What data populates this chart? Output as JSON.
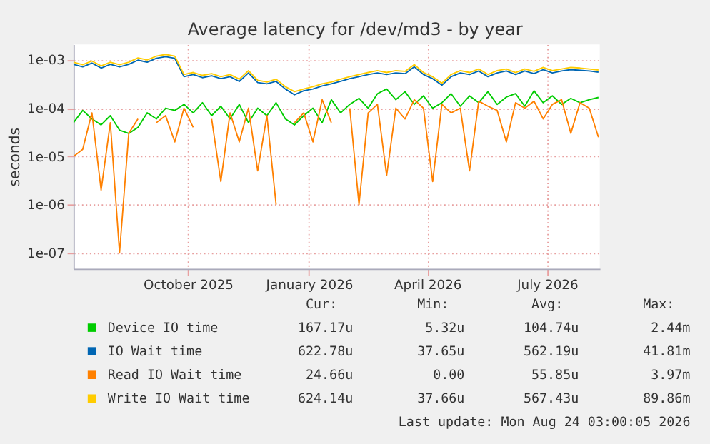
{
  "chart_data": {
    "type": "line",
    "title": "Average latency for /dev/md3 - by year",
    "ylabel": "seconds",
    "log": true,
    "grid": true,
    "legend": "bottom",
    "marker": "none",
    "line_style": "solid",
    "x": [
      "2025-07-20",
      "2025-07-27",
      "2025-08-03",
      "2025-08-10",
      "2025-08-17",
      "2025-08-24",
      "2025-08-31",
      "2025-09-07",
      "2025-09-14",
      "2025-09-21",
      "2025-09-28",
      "2025-10-05",
      "2025-10-12",
      "2025-10-19",
      "2025-10-26",
      "2025-11-02",
      "2025-11-09",
      "2025-11-16",
      "2025-11-23",
      "2025-11-30",
      "2025-12-07",
      "2025-12-14",
      "2025-12-21",
      "2025-12-28",
      "2026-01-04",
      "2026-01-11",
      "2026-01-18",
      "2026-01-25",
      "2026-02-01",
      "2026-02-08",
      "2026-02-15",
      "2026-02-22",
      "2026-03-01",
      "2026-03-08",
      "2026-03-15",
      "2026-03-22",
      "2026-03-29",
      "2026-04-05",
      "2026-04-12",
      "2026-04-19",
      "2026-04-26",
      "2026-05-03",
      "2026-05-10",
      "2026-05-17",
      "2026-05-24",
      "2026-05-31",
      "2026-06-07",
      "2026-06-14",
      "2026-06-21",
      "2026-06-28",
      "2026-07-05",
      "2026-07-12",
      "2026-07-19",
      "2026-07-26",
      "2026-08-02",
      "2026-08-09",
      "2026-08-16",
      "2026-08-23"
    ],
    "xlim": [
      "2025-07-20",
      "2026-08-24"
    ],
    "xticks": [
      {
        "value": "2025-10-15",
        "label": "October 2025"
      },
      {
        "value": "2026-01-15",
        "label": "January 2026"
      },
      {
        "value": "2026-04-15",
        "label": "April 2026"
      },
      {
        "value": "2026-07-15",
        "label": "July 2026"
      }
    ],
    "ylim": [
      4.7e-08,
      0.0021
    ],
    "yticks": [
      {
        "value": 1e-07,
        "label": "1e-07"
      },
      {
        "value": 1e-06,
        "label": "1e-06"
      },
      {
        "value": 1e-05,
        "label": "1e-05"
      },
      {
        "value": 0.0001,
        "label": "1e-04"
      },
      {
        "value": 0.001,
        "label": "1e-03"
      }
    ],
    "series": [
      {
        "name": "Device IO time",
        "color": "#00cc00",
        "values": [
          5e-05,
          9e-05,
          6e-05,
          4.5e-05,
          7e-05,
          3.5e-05,
          3e-05,
          4e-05,
          8e-05,
          6e-05,
          0.0001,
          9e-05,
          0.00012,
          8e-05,
          0.00013,
          7e-05,
          0.00011,
          6e-05,
          0.00012,
          5e-05,
          0.0001,
          7e-05,
          0.00013,
          6e-05,
          4.5e-05,
          7e-05,
          0.0001,
          5e-05,
          0.00015,
          8e-05,
          0.00012,
          0.00016,
          0.0001,
          0.0002,
          0.00025,
          0.00015,
          0.00022,
          0.00012,
          0.00018,
          0.0001,
          0.00013,
          0.0002,
          0.00011,
          0.00018,
          0.00013,
          0.00022,
          0.00012,
          0.00017,
          0.0002,
          0.00011,
          0.00023,
          0.00013,
          0.00018,
          0.00012,
          0.00016,
          0.00013,
          0.00015,
          0.000167
        ]
      },
      {
        "name": "IO Wait time",
        "color": "#0066b3",
        "values": [
          0.00081,
          0.00072,
          0.00086,
          0.00068,
          0.00081,
          0.00072,
          0.00081,
          0.00099,
          0.0009,
          0.00108,
          0.00117,
          0.00108,
          0.00045,
          0.0005,
          0.00043,
          0.00047,
          0.00041,
          0.00045,
          0.00036,
          0.00054,
          0.00034,
          0.00032,
          0.00036,
          0.00025,
          0.00019,
          0.00023,
          0.00025,
          0.00029,
          0.00032,
          0.00036,
          0.00041,
          0.00045,
          0.0005,
          0.00054,
          0.0005,
          0.00054,
          0.00052,
          0.00072,
          0.0005,
          0.00041,
          0.0003,
          0.00045,
          0.00054,
          0.0005,
          0.00059,
          0.00045,
          0.00054,
          0.00059,
          0.0005,
          0.00059,
          0.00052,
          0.00063,
          0.00054,
          0.00059,
          0.00063,
          0.00061,
          0.00059,
          0.00056
        ]
      },
      {
        "name": "Read IO Wait time",
        "color": "#ff8000",
        "values": [
          1e-05,
          1.4e-05,
          8e-05,
          2e-06,
          5e-05,
          1e-07,
          3e-05,
          6e-05,
          null,
          5e-05,
          7e-05,
          2e-05,
          0.0001,
          4e-05,
          null,
          6e-05,
          3e-06,
          8e-05,
          2e-05,
          0.0001,
          5e-06,
          7e-05,
          1e-06,
          null,
          5e-05,
          8e-05,
          2e-05,
          0.00015,
          5e-05,
          null,
          0.0001,
          1e-06,
          8e-05,
          0.00012,
          4e-06,
          0.0001,
          6e-05,
          0.00015,
          0.0001,
          3e-06,
          0.00012,
          8e-05,
          0.0001,
          5e-06,
          0.00014,
          0.00011,
          9e-05,
          2e-05,
          0.00013,
          0.0001,
          0.00014,
          6e-05,
          0.00012,
          0.00015,
          3e-05,
          0.00013,
          0.0001,
          2.5e-05
        ]
      },
      {
        "name": "Write IO Wait time",
        "color": "#ffcc00",
        "values": [
          0.0009,
          0.0008,
          0.00095,
          0.00075,
          0.0009,
          0.0008,
          0.0009,
          0.0011,
          0.001,
          0.0012,
          0.0013,
          0.0012,
          0.0005,
          0.00055,
          0.00048,
          0.00052,
          0.00045,
          0.0005,
          0.0004,
          0.0006,
          0.00038,
          0.00035,
          0.0004,
          0.00028,
          0.00022,
          0.00025,
          0.00028,
          0.00032,
          0.00035,
          0.0004,
          0.00045,
          0.0005,
          0.00055,
          0.0006,
          0.00055,
          0.0006,
          0.00058,
          0.0008,
          0.00055,
          0.00045,
          0.00033,
          0.0005,
          0.0006,
          0.00055,
          0.00065,
          0.0005,
          0.0006,
          0.00065,
          0.00055,
          0.00065,
          0.00058,
          0.0007,
          0.0006,
          0.00065,
          0.0007,
          0.00068,
          0.00065,
          0.00062
        ]
      }
    ],
    "annotations": [
      "Cur:",
      "Min:",
      "Avg:",
      "Max:",
      "167.17u",
      "5.32u",
      "104.74u",
      "2.44m",
      "622.78u",
      "37.65u",
      "562.19u",
      "41.81m",
      "24.66u",
      "0.00",
      "55.85u",
      "3.97m",
      "624.14u",
      "37.66u",
      "567.43u",
      "89.86m",
      "Last update: Mon Aug 24 03:00:05 2026"
    ]
  }
}
